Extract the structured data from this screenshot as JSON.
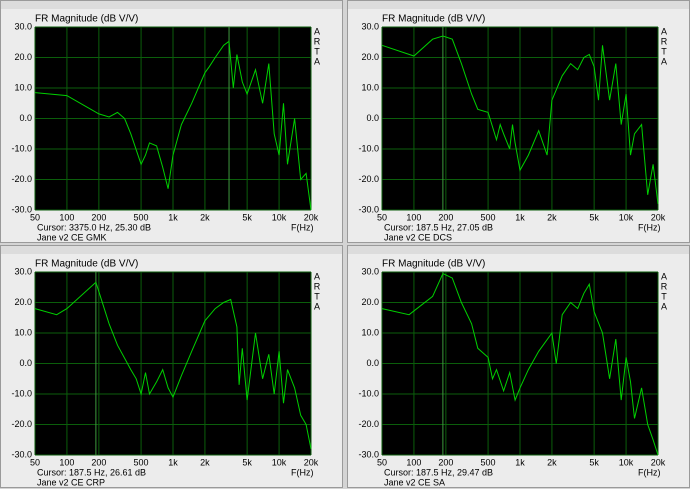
{
  "chart_data": [
    {
      "type": "line",
      "title": "FR Magnitude (dB V/V)",
      "side_label": "ARTA",
      "x_label": "F(Hz)",
      "cursor_text": "Cursor:  3375.0 Hz, 25.30 dB",
      "cursor_x": 3375,
      "caption": "Jane v2 CE GMK",
      "log_x": true,
      "grid": true,
      "xlim": [
        50,
        20000
      ],
      "ylim": [
        -30,
        30
      ],
      "xticks": [
        50,
        100,
        200,
        500,
        {
          "value": 1000,
          "label": "1k"
        },
        {
          "value": 2000,
          "label": "2k"
        },
        {
          "value": 5000,
          "label": "5k"
        },
        {
          "value": 10000,
          "label": "10k"
        },
        {
          "value": 20000,
          "label": "20k"
        }
      ],
      "yticks": [
        {
          "value": 30,
          "label": "30.0"
        },
        {
          "value": 20,
          "label": "20.0"
        },
        {
          "value": 10,
          "label": "10.0"
        },
        {
          "value": 0,
          "label": "0.0"
        },
        {
          "value": -10,
          "label": "-10.0"
        },
        {
          "value": -20,
          "label": "-20.0"
        },
        {
          "value": -30,
          "label": "-30.0"
        }
      ],
      "series": [
        {
          "color": "#00d000",
          "x": [
            50,
            100,
            150,
            200,
            250,
            300,
            350,
            400,
            500,
            550,
            600,
            700,
            800,
            900,
            1000,
            1200,
            1500,
            2000,
            2200,
            2500,
            3000,
            3375,
            3700,
            4000,
            4500,
            5000,
            6000,
            7000,
            8000,
            9000,
            10000,
            11000,
            12000,
            14000,
            16000,
            18000,
            20000
          ],
          "values": [
            8.5,
            7.5,
            4,
            1.5,
            0.5,
            2,
            0,
            -5,
            -15,
            -12,
            -8,
            -9,
            -16,
            -23,
            -12,
            -2,
            5,
            15,
            17,
            20,
            24,
            25.3,
            10,
            21,
            12,
            8,
            16,
            5,
            18,
            -5,
            -12,
            5,
            -15,
            0,
            -20,
            -18,
            -30
          ]
        }
      ]
    },
    {
      "type": "line",
      "title": "FR Magnitude (dB V/V)",
      "side_label": "ARTA",
      "x_label": "F(Hz)",
      "cursor_text": "Cursor:  187.5 Hz, 27.05 dB",
      "cursor_x": 187.5,
      "caption": "Jane v2 CE DCS",
      "log_x": true,
      "grid": true,
      "xlim": [
        50,
        20000
      ],
      "ylim": [
        -30,
        30
      ],
      "xticks": [
        50,
        100,
        200,
        500,
        {
          "value": 1000,
          "label": "1k"
        },
        {
          "value": 2000,
          "label": "2k"
        },
        {
          "value": 5000,
          "label": "5k"
        },
        {
          "value": 10000,
          "label": "10k"
        },
        {
          "value": 20000,
          "label": "20k"
        }
      ],
      "yticks": [
        {
          "value": 30,
          "label": "30.0"
        },
        {
          "value": 20,
          "label": "20.0"
        },
        {
          "value": 10,
          "label": "10.0"
        },
        {
          "value": 0,
          "label": "0.0"
        },
        {
          "value": -10,
          "label": "-10.0"
        },
        {
          "value": -20,
          "label": "-20.0"
        },
        {
          "value": -30,
          "label": "-30.0"
        }
      ],
      "series": [
        {
          "color": "#00d000",
          "x": [
            50,
            100,
            150,
            187.5,
            230,
            280,
            350,
            400,
            500,
            600,
            650,
            700,
            800,
            850,
            900,
            1000,
            1200,
            1500,
            1800,
            2000,
            2500,
            3000,
            3500,
            4000,
            4500,
            5000,
            5500,
            6000,
            7000,
            8000,
            9000,
            10000,
            11000,
            12000,
            14000,
            16000,
            18000,
            20000
          ],
          "values": [
            24,
            20.5,
            26,
            27.05,
            26,
            18,
            8,
            3,
            2,
            -7,
            -2,
            -5,
            -10,
            -2,
            -8,
            -17,
            -12,
            -4,
            -12,
            6,
            14,
            18,
            16,
            20,
            21,
            17,
            6,
            24,
            6,
            18,
            -2,
            8,
            -12,
            -5,
            -2,
            -25,
            -15,
            -28
          ]
        }
      ]
    },
    {
      "type": "line",
      "title": "FR Magnitude (dB V/V)",
      "side_label": "ARTA",
      "x_label": "F(Hz)",
      "cursor_text": "Cursor:  187.5 Hz, 26.61 dB",
      "cursor_x": 187.5,
      "caption": "Jane v2 CE CRP",
      "log_x": true,
      "grid": true,
      "xlim": [
        50,
        20000
      ],
      "ylim": [
        -30,
        30
      ],
      "xticks": [
        50,
        100,
        200,
        500,
        {
          "value": 1000,
          "label": "1k"
        },
        {
          "value": 2000,
          "label": "2k"
        },
        {
          "value": 5000,
          "label": "5k"
        },
        {
          "value": 10000,
          "label": "10k"
        },
        {
          "value": 20000,
          "label": "20k"
        }
      ],
      "yticks": [
        {
          "value": 30,
          "label": "30.0"
        },
        {
          "value": 20,
          "label": "20.0"
        },
        {
          "value": 10,
          "label": "10.0"
        },
        {
          "value": 0,
          "label": "0.0"
        },
        {
          "value": -10,
          "label": "-10.0"
        },
        {
          "value": -20,
          "label": "-20.0"
        },
        {
          "value": -30,
          "label": "-30.0"
        }
      ],
      "series": [
        {
          "color": "#00d000",
          "x": [
            50,
            80,
            100,
            187.5,
            250,
            300,
            400,
            450,
            500,
            550,
            600,
            700,
            800,
            900,
            1000,
            1200,
            1500,
            2000,
            2500,
            3000,
            3500,
            4000,
            4200,
            4500,
            5000,
            6000,
            7000,
            8000,
            9000,
            10000,
            11000,
            12000,
            14000,
            16000,
            18000,
            20000
          ],
          "values": [
            18,
            16,
            18,
            26.61,
            13,
            6,
            -2,
            -5,
            -10,
            -3,
            -10,
            -6,
            -2,
            -8,
            -11,
            -4,
            4,
            14,
            18,
            20,
            21,
            12,
            -7,
            5,
            -12,
            10,
            -5,
            3,
            -10,
            4,
            -13,
            -2,
            -8,
            -17,
            -20,
            -28
          ]
        }
      ]
    },
    {
      "type": "line",
      "title": "FR Magnitude (dB V/V)",
      "side_label": "ARTA",
      "x_label": "F(Hz)",
      "cursor_text": "Cursor:  187.5 Hz, 29.47 dB",
      "cursor_x": 187.5,
      "caption": "Jane v2 CE SA",
      "log_x": true,
      "grid": true,
      "xlim": [
        50,
        20000
      ],
      "ylim": [
        -30,
        30
      ],
      "xticks": [
        50,
        100,
        200,
        500,
        {
          "value": 1000,
          "label": "1k"
        },
        {
          "value": 2000,
          "label": "2k"
        },
        {
          "value": 5000,
          "label": "5k"
        },
        {
          "value": 10000,
          "label": "10k"
        },
        {
          "value": 20000,
          "label": "20k"
        }
      ],
      "yticks": [
        {
          "value": 30,
          "label": "30.0"
        },
        {
          "value": 20,
          "label": "20.0"
        },
        {
          "value": 10,
          "label": "10.0"
        },
        {
          "value": 0,
          "label": "0.0"
        },
        {
          "value": -10,
          "label": "-10.0"
        },
        {
          "value": -20,
          "label": "-20.0"
        },
        {
          "value": -30,
          "label": "-30.0"
        }
      ],
      "series": [
        {
          "color": "#00d000",
          "x": [
            50,
            90,
            150,
            187.5,
            230,
            280,
            350,
            400,
            500,
            550,
            600,
            700,
            800,
            900,
            1000,
            1200,
            1500,
            2000,
            2200,
            2500,
            3000,
            3500,
            4000,
            4500,
            5000,
            6000,
            7000,
            8000,
            9000,
            10000,
            11000,
            12000,
            14000,
            16000,
            18000,
            20000
          ],
          "values": [
            18,
            16,
            22,
            29.47,
            28,
            20,
            13,
            5,
            2,
            -5,
            -2,
            -9,
            -3,
            -12,
            -8,
            -2,
            4,
            10,
            0,
            16,
            20,
            18,
            23,
            26,
            17,
            10,
            -5,
            8,
            -12,
            2,
            -6,
            -18,
            -8,
            -20,
            -25,
            -30
          ]
        }
      ]
    }
  ]
}
